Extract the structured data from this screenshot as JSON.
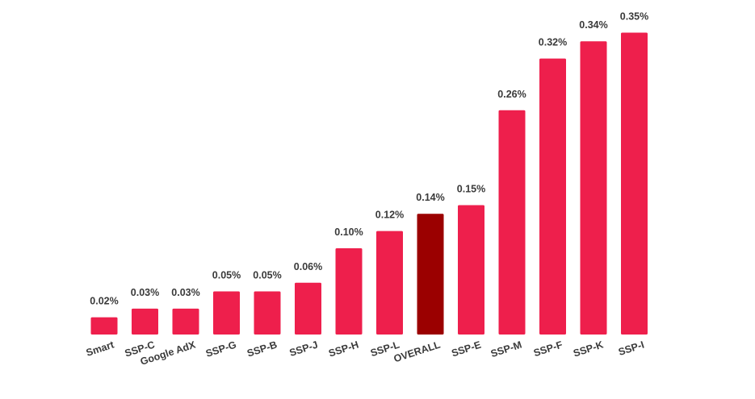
{
  "chart_data": {
    "type": "bar",
    "title": "",
    "xlabel": "",
    "ylabel": "",
    "ylim": [
      0,
      0.35
    ],
    "grid": false,
    "legend": "none",
    "categories": [
      "Smart",
      "SSP-C",
      "Google AdX",
      "SSP-G",
      "SSP-B",
      "SSP-J",
      "SSP-H",
      "SSP-L",
      "OVERALL",
      "SSP-E",
      "SSP-M",
      "SSP-F",
      "SSP-K",
      "SSP-I"
    ],
    "values": [
      0.02,
      0.03,
      0.03,
      0.05,
      0.05,
      0.06,
      0.1,
      0.12,
      0.14,
      0.15,
      0.26,
      0.32,
      0.34,
      0.35
    ],
    "value_labels": [
      "0.02%",
      "0.03%",
      "0.03%",
      "0.05%",
      "0.05%",
      "0.06%",
      "0.10%",
      "0.12%",
      "0.14%",
      "0.15%",
      "0.26%",
      "0.32%",
      "0.34%",
      "0.35%"
    ],
    "unit": "%",
    "colors": {
      "bar": "#ee1f4c",
      "highlight": "#9b0000",
      "label": "#3a3a3a"
    },
    "highlight_category": "OVERALL"
  }
}
